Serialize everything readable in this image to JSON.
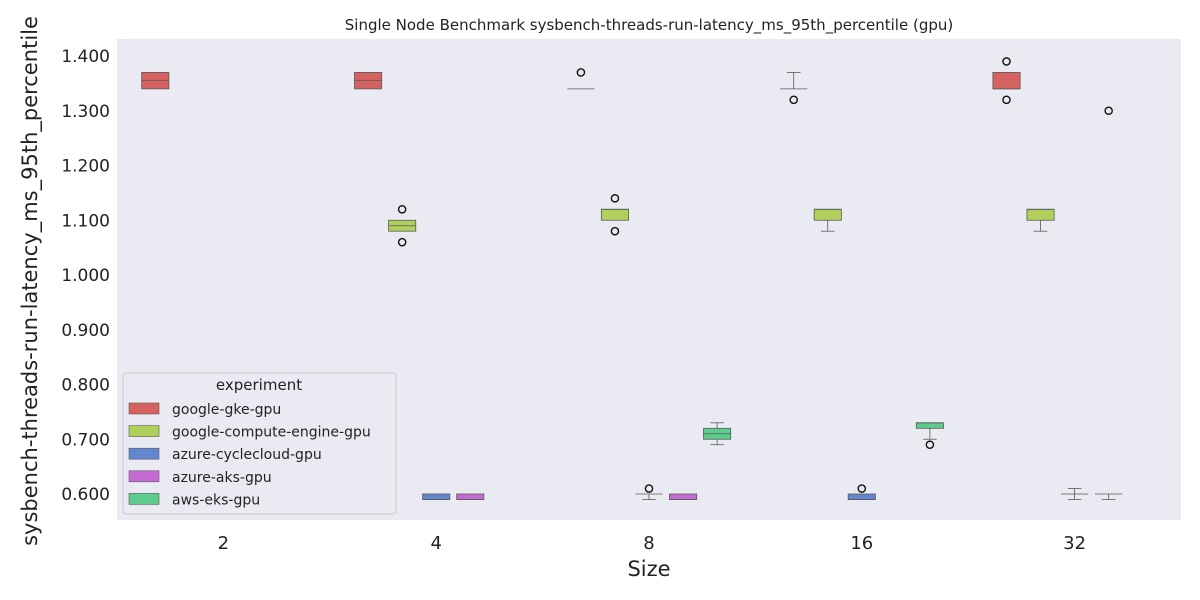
{
  "chart_data": {
    "type": "box",
    "title": "Single Node Benchmark sysbench-threads-run-latency_ms_95th_percentile (gpu)",
    "xlabel": "Size",
    "ylabel": "sysbench-threads-run-latency_ms_95th_percentile",
    "categories": [
      "2",
      "4",
      "8",
      "16",
      "32"
    ],
    "ylim": [
      0.55,
      1.43
    ],
    "yticks": [
      0.6,
      0.7,
      0.8,
      0.9,
      1.0,
      1.1,
      1.2,
      1.3,
      1.4
    ],
    "ytick_labels": [
      "0.600",
      "0.700",
      "0.800",
      "0.900",
      "1.000",
      "1.100",
      "1.200",
      "1.300",
      "1.400"
    ],
    "grid": false,
    "background": "#eaeaf2",
    "legend": {
      "title": "experiment",
      "placement": "lower-left"
    },
    "series": [
      {
        "name": "google-gke-gpu",
        "color": "#d6635f",
        "boxes": [
          {
            "category": "2",
            "q1": 1.34,
            "median": 1.355,
            "q3": 1.37,
            "whisker_low": 1.34,
            "whisker_high": 1.37,
            "fliers": []
          },
          {
            "category": "4",
            "q1": 1.34,
            "median": 1.355,
            "q3": 1.37,
            "whisker_low": 1.34,
            "whisker_high": 1.37,
            "fliers": []
          },
          {
            "category": "8",
            "q1": 1.34,
            "median": 1.34,
            "q3": 1.34,
            "whisker_low": 1.34,
            "whisker_high": 1.34,
            "fliers": [
              1.37
            ]
          },
          {
            "category": "16",
            "q1": 1.34,
            "median": 1.34,
            "q3": 1.34,
            "whisker_low": 1.34,
            "whisker_high": 1.37,
            "fliers": [
              1.32
            ]
          },
          {
            "category": "32",
            "q1": 1.34,
            "median": 1.34,
            "q3": 1.37,
            "whisker_low": 1.34,
            "whisker_high": 1.37,
            "fliers": [
              1.39,
              1.32
            ]
          }
        ]
      },
      {
        "name": "google-compute-engine-gpu",
        "color": "#b0cf5b",
        "boxes": [
          {
            "category": "4",
            "q1": 1.08,
            "median": 1.09,
            "q3": 1.1,
            "whisker_low": 1.08,
            "whisker_high": 1.1,
            "fliers": [
              1.12,
              1.06
            ]
          },
          {
            "category": "8",
            "q1": 1.1,
            "median": 1.12,
            "q3": 1.12,
            "whisker_low": 1.1,
            "whisker_high": 1.12,
            "fliers": [
              1.14,
              1.08
            ]
          },
          {
            "category": "16",
            "q1": 1.1,
            "median": 1.12,
            "q3": 1.12,
            "whisker_low": 1.08,
            "whisker_high": 1.12,
            "fliers": []
          },
          {
            "category": "32",
            "q1": 1.1,
            "median": 1.12,
            "q3": 1.12,
            "whisker_low": 1.08,
            "whisker_high": 1.12,
            "fliers": []
          }
        ]
      },
      {
        "name": "azure-cyclecloud-gpu",
        "color": "#6386d0",
        "boxes": [
          {
            "category": "4",
            "q1": 0.59,
            "median": 0.59,
            "q3": 0.6,
            "whisker_low": 0.59,
            "whisker_high": 0.6,
            "fliers": []
          },
          {
            "category": "8",
            "q1": 0.6,
            "median": 0.6,
            "q3": 0.6,
            "whisker_low": 0.59,
            "whisker_high": 0.6,
            "fliers": [
              0.61
            ]
          },
          {
            "category": "16",
            "q1": 0.59,
            "median": 0.59,
            "q3": 0.6,
            "whisker_low": 0.59,
            "whisker_high": 0.6,
            "fliers": [
              0.61
            ]
          },
          {
            "category": "32",
            "q1": 0.6,
            "median": 0.6,
            "q3": 0.6,
            "whisker_low": 0.59,
            "whisker_high": 0.61,
            "fliers": []
          }
        ]
      },
      {
        "name": "azure-aks-gpu",
        "color": "#c66ad3",
        "boxes": [
          {
            "category": "4",
            "q1": 0.59,
            "median": 0.59,
            "q3": 0.6,
            "whisker_low": 0.59,
            "whisker_high": 0.6,
            "fliers": []
          },
          {
            "category": "8",
            "q1": 0.59,
            "median": 0.59,
            "q3": 0.6,
            "whisker_low": 0.59,
            "whisker_high": 0.6,
            "fliers": []
          },
          {
            "category": "32",
            "q1": 0.6,
            "median": 0.6,
            "q3": 0.6,
            "whisker_low": 0.59,
            "whisker_high": 0.6,
            "fliers": [
              1.3
            ]
          }
        ]
      },
      {
        "name": "aws-eks-gpu",
        "color": "#5ccc8c",
        "boxes": [
          {
            "category": "8",
            "q1": 0.7,
            "median": 0.71,
            "q3": 0.72,
            "whisker_low": 0.69,
            "whisker_high": 0.73,
            "fliers": []
          },
          {
            "category": "16",
            "q1": 0.72,
            "median": 0.73,
            "q3": 0.73,
            "whisker_low": 0.7,
            "whisker_high": 0.73,
            "fliers": [
              0.69
            ]
          }
        ]
      }
    ]
  }
}
